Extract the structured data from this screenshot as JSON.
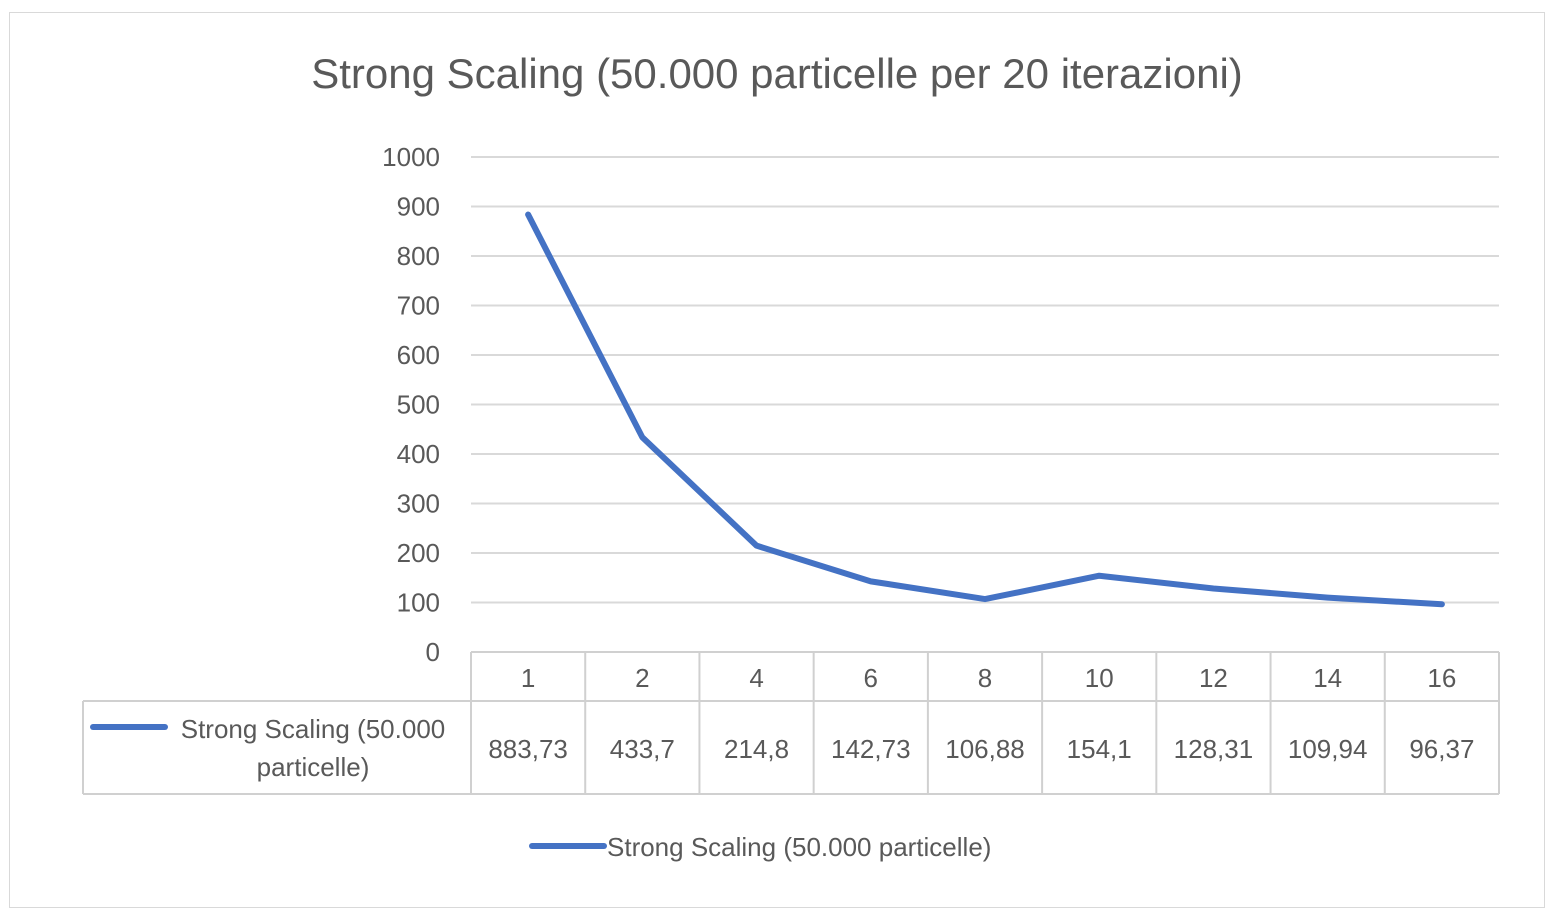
{
  "chart_data": {
    "type": "line",
    "title": "Strong Scaling (50.000 particelle per 20 iterazioni)",
    "categories": [
      "1",
      "2",
      "4",
      "6",
      "8",
      "10",
      "12",
      "14",
      "16"
    ],
    "series": [
      {
        "name": "Strong Scaling (50.000 particelle)",
        "table_label_line1": "Strong Scaling (50.000",
        "table_label_line2": "particelle)",
        "values": [
          883.73,
          433.7,
          214.8,
          142.73,
          106.88,
          154.1,
          128.31,
          109.94,
          96.37
        ],
        "value_labels": [
          "883,73",
          "433,7",
          "214,8",
          "142,73",
          "106,88",
          "154,1",
          "128,31",
          "109,94",
          "96,37"
        ],
        "color": "#4472c4"
      }
    ],
    "ylim": [
      0,
      1000
    ],
    "yticks": [
      "0",
      "100",
      "200",
      "300",
      "400",
      "500",
      "600",
      "700",
      "800",
      "900",
      "1000"
    ],
    "grid": true,
    "data_table": true,
    "legend": "bottom-center",
    "xlabel": "",
    "ylabel": ""
  }
}
